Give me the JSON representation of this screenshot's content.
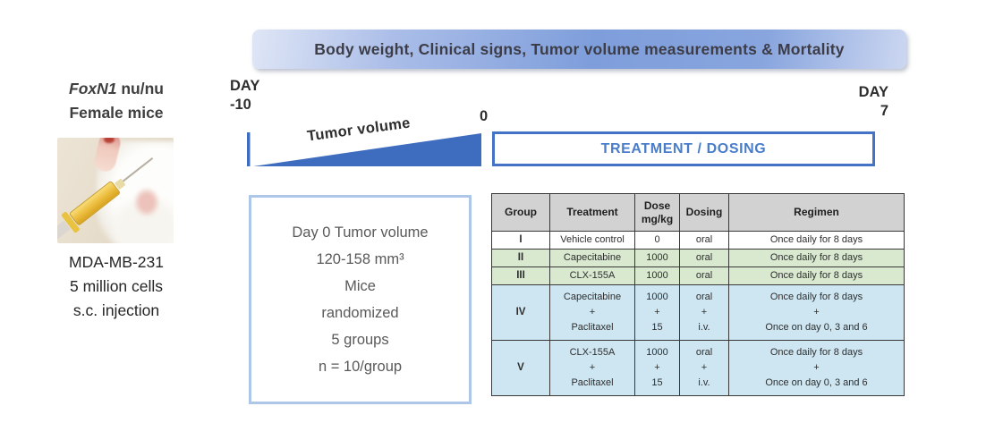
{
  "banner": {
    "label": "Body weight, Clinical signs, Tumor volume measurements & Mortality"
  },
  "left_panel": {
    "strain_italic": "FoxN1",
    "strain_rest": " nu/nu",
    "strain_line2": "Female mice",
    "photo_description": "mouse receiving subcutaneous injection with yellow-filled syringe",
    "cell_line": "MDA-MB-231",
    "cell_count": "5 million cells",
    "injection_route": "s.c. injection"
  },
  "timeline": {
    "start_label_line1": "DAY",
    "start_label_line2": "-10",
    "day_zero_label": "0",
    "end_label_line1": "DAY",
    "end_label_line2": "7",
    "wedge_label": "Tumor volume",
    "treatment_label": "TREATMENT / DOSING"
  },
  "randomization_box": {
    "lines": [
      "Day 0 Tumor volume",
      "120-158 mm³",
      "Mice",
      "randomized",
      "5 groups",
      "n = 10/group"
    ]
  },
  "table": {
    "headers": [
      "Group",
      "Treatment",
      "Dose\nmg/kg",
      "Dosing",
      "Regimen"
    ],
    "rows": [
      {
        "group": "I",
        "treatment": "Vehicle control",
        "dose": "0",
        "dosing": "oral",
        "regimen": "Once daily for 8 days",
        "bg": "white",
        "size": "small"
      },
      {
        "group": "II",
        "treatment": "Capecitabine",
        "dose": "1000",
        "dosing": "oral",
        "regimen": "Once daily for 8 days",
        "bg": "green",
        "size": "small"
      },
      {
        "group": "III",
        "treatment": "CLX-155A",
        "dose": "1000",
        "dosing": "oral",
        "regimen": "Once daily for 8 days",
        "bg": "green",
        "size": "small"
      },
      {
        "group": "IV",
        "treatment": "Capecitabine\n+\nPaclitaxel",
        "dose": "1000\n+\n15",
        "dosing": "oral\n+\ni.v.",
        "regimen": "Once daily for 8 days\n+\nOnce on day 0, 3 and 6",
        "bg": "blue",
        "size": "tall"
      },
      {
        "group": "V",
        "treatment": "CLX-155A\n+\nPaclitaxel",
        "dose": "1000\n+\n15",
        "dosing": "oral\n+\ni.v.",
        "regimen": "Once daily for 8 days\n+\nOnce on day 0, 3 and 6",
        "bg": "blue",
        "size": "tall"
      }
    ]
  },
  "colors": {
    "accent_blue": "#4472c4",
    "banner_blue_mid": "#7e9edb",
    "row_white": "#ffffff",
    "row_green": "#d8e9d0",
    "row_blue": "#cde6f2",
    "header_gray": "#d2d2d2",
    "rand_box_border": "#aec6e8"
  }
}
